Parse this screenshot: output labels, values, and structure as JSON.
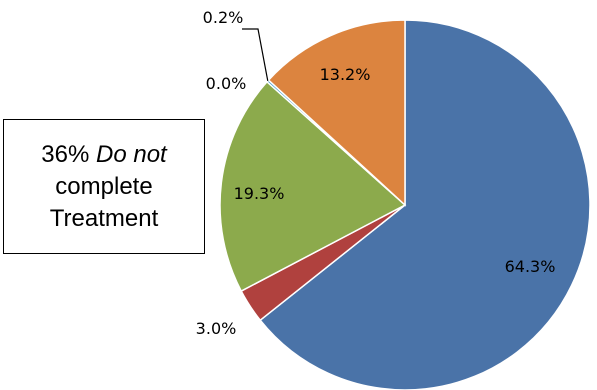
{
  "chart_data": {
    "type": "pie",
    "title": "",
    "start_angle_deg": 0,
    "direction": "clockwise",
    "slices": [
      {
        "label": "64.3%",
        "value": 64.3,
        "color": "#4A73A8"
      },
      {
        "label": "3.0%",
        "value": 3.0,
        "color": "#B0413E"
      },
      {
        "label": "19.3%",
        "value": 19.3,
        "color": "#8CAA4C"
      },
      {
        "label": "0.0%",
        "value": 0.0,
        "color": "#7D5FA0"
      },
      {
        "label": "0.2%",
        "value": 0.2,
        "color": "#3A9AC8"
      },
      {
        "label": "13.2%",
        "value": 13.2,
        "color": "#DC843F"
      }
    ],
    "annotation": {
      "line1_number": "36%",
      "line1_text": "Do not",
      "line2": "complete",
      "line3": "Treatment"
    }
  }
}
